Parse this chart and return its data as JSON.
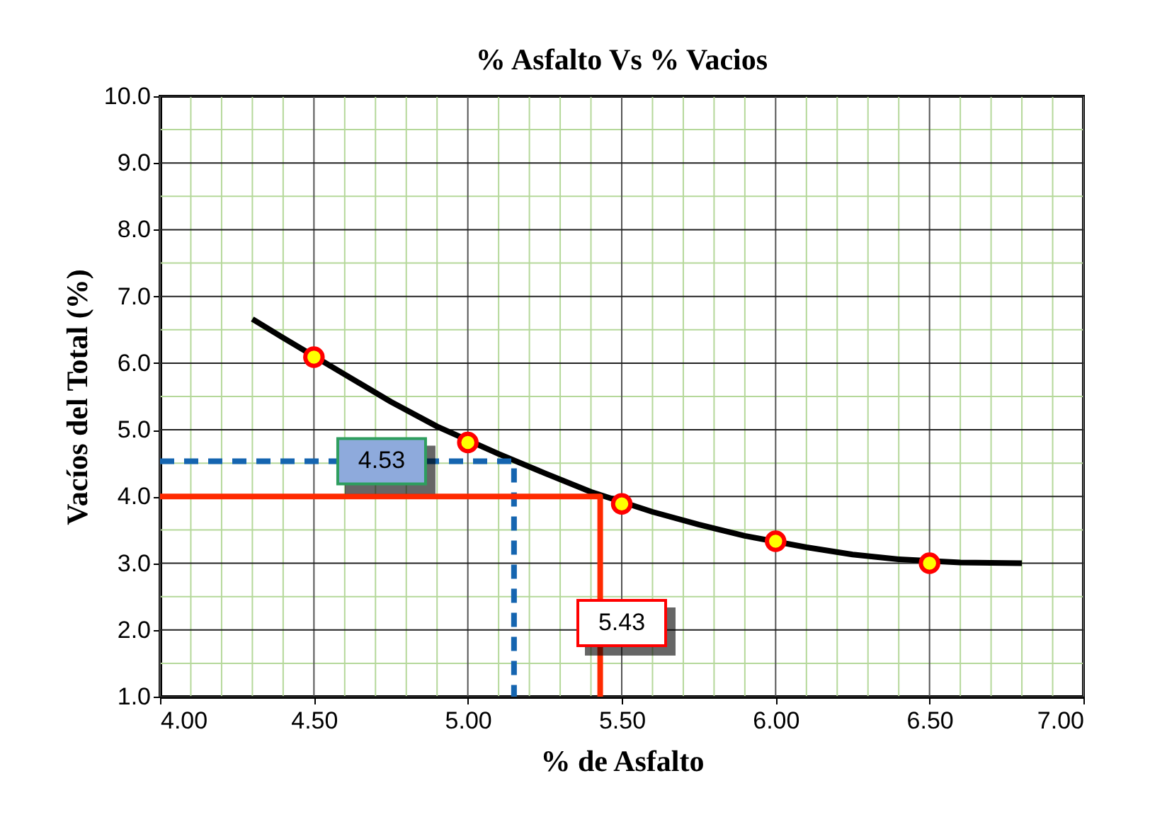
{
  "chart_data": {
    "type": "scatter",
    "title": "% Asfalto Vs % Vacios",
    "xlabel": "% de Asfalto",
    "ylabel": "Vacíos del Total (%)",
    "x": [
      4.5,
      5.0,
      5.5,
      6.0,
      6.5
    ],
    "series": [
      {
        "color": "#ff0000",
        "values": [
          6.09,
          4.81,
          3.89,
          3.33,
          3.0
        ],
        "marker": "circle"
      },
      {
        "type": "line",
        "color": "#000000",
        "x": [
          4.3,
          4.4,
          4.6,
          4.75,
          4.9,
          5.1,
          5.25,
          5.4,
          5.6,
          5.75,
          5.9,
          6.1,
          6.25,
          6.4,
          6.6,
          6.8
        ],
        "values": [
          6.66,
          6.38,
          5.83,
          5.42,
          5.05,
          4.64,
          4.35,
          4.07,
          3.77,
          3.58,
          3.41,
          3.24,
          3.13,
          3.06,
          3.01,
          3.0
        ],
        "line_style": "solid"
      },
      {
        "type": "line",
        "color": "#1565b0",
        "x": [
          4.0,
          5.15,
          5.15
        ],
        "values": [
          4.53,
          4.53,
          1.0
        ],
        "line_style": "dashed"
      },
      {
        "type": "line",
        "color": "#ff2a00",
        "x": [
          4.0,
          5.43,
          5.43
        ],
        "values": [
          4.0,
          4.0,
          1.0
        ],
        "line_style": "solid"
      }
    ],
    "annotations": [
      {
        "text": "4.53",
        "x": 4.72,
        "y": 4.53
      },
      "5.43"
    ],
    "xlim": [
      4.0,
      7.0
    ],
    "xticks": [
      {
        "value": 4,
        "label": "4.00"
      },
      {
        "value": 4.1,
        "label": null
      },
      {
        "value": 4.2,
        "label": null
      },
      {
        "value": 4.3,
        "label": null
      },
      {
        "value": 4.4,
        "label": null
      },
      {
        "value": 4.5,
        "label": "4.50"
      },
      {
        "value": 4.6,
        "label": null
      },
      {
        "value": 4.7,
        "label": null
      },
      {
        "value": 4.8,
        "label": null
      },
      {
        "value": 4.9,
        "label": null
      },
      {
        "value": 5,
        "label": "5.00"
      },
      {
        "value": 5.1,
        "label": null
      },
      {
        "value": 5.2,
        "label": null
      },
      {
        "value": 5.3,
        "label": null
      },
      {
        "value": 5.4,
        "label": null
      },
      {
        "value": 5.5,
        "label": "5.50"
      },
      {
        "value": 5.6,
        "label": null
      },
      {
        "value": 5.7,
        "label": null
      },
      {
        "value": 5.8,
        "label": null
      },
      {
        "value": 5.9,
        "label": null
      },
      {
        "value": 6,
        "label": "6.00"
      },
      {
        "value": 6.1,
        "label": null
      },
      {
        "value": 6.2,
        "label": null
      },
      {
        "value": 6.3,
        "label": null
      },
      {
        "value": 6.4,
        "label": null
      },
      {
        "value": 6.5,
        "label": "6.50"
      },
      {
        "value": 6.6,
        "label": null
      },
      {
        "value": 6.7,
        "label": null
      },
      {
        "value": 6.8,
        "label": null
      },
      {
        "value": 6.9,
        "label": null
      },
      {
        "value": 7,
        "label": "7.00"
      }
    ],
    "ylim": [
      1.0,
      10.0
    ],
    "yticks": [
      {
        "value": 1,
        "label": "1.0"
      },
      {
        "value": 1.5,
        "label": null
      },
      {
        "value": 2,
        "label": "2.0"
      },
      {
        "value": 2.5,
        "label": null
      },
      {
        "value": 3,
        "label": "3.0"
      },
      {
        "value": 3.5,
        "label": null
      },
      {
        "value": 4,
        "label": "4.0"
      },
      {
        "value": 4.5,
        "label": null
      },
      {
        "value": 5,
        "label": "5.0"
      },
      {
        "value": 5.5,
        "label": null
      },
      {
        "value": 6,
        "label": "6.0"
      },
      {
        "value": 6.5,
        "label": null
      },
      {
        "value": 7,
        "label": "7.0"
      },
      {
        "value": 7.5,
        "label": null
      },
      {
        "value": 8,
        "label": "8.0"
      },
      {
        "value": 8.5,
        "label": null
      },
      {
        "value": 9,
        "label": "9.0"
      },
      {
        "value": 9.5,
        "label": null
      },
      {
        "value": 10,
        "label": "10.0"
      }
    ],
    "grid": true
  }
}
